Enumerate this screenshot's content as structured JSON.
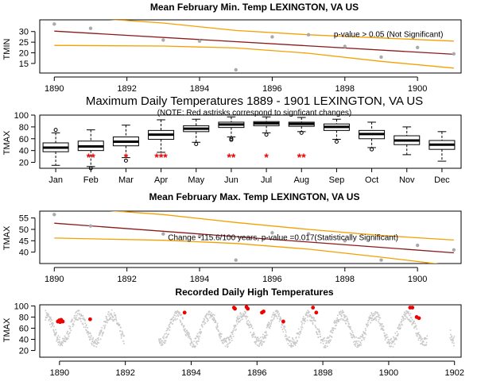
{
  "colors": {
    "trend": "#8b1a1a",
    "band": "#f5a000",
    "point": "#aaaaaa",
    "daily": "#c8c8c8",
    "highlight": "#ee0000",
    "sig": "#ee0000"
  },
  "chart_data": [
    {
      "type": "scatter",
      "title": "Mean February Min. Temp LEXINGTON, VA US",
      "ylabel": "TMIN",
      "xlabel": "",
      "xlim": [
        1889.6,
        1901.2
      ],
      "ylim": [
        10.5,
        35.5
      ],
      "xticks": [
        1890,
        1892,
        1894,
        1896,
        1898,
        1900
      ],
      "yticks": [
        15,
        20,
        25,
        30
      ],
      "points": [
        {
          "x": 1890,
          "y": 33.5
        },
        {
          "x": 1891,
          "y": 31.5
        },
        {
          "x": 1893,
          "y": 26
        },
        {
          "x": 1894,
          "y": 25.5
        },
        {
          "x": 1895,
          "y": 12
        },
        {
          "x": 1896,
          "y": 27.5
        },
        {
          "x": 1897,
          "y": 28.5
        },
        {
          "x": 1898,
          "y": 23
        },
        {
          "x": 1899,
          "y": 18
        },
        {
          "x": 1900,
          "y": 22.5
        },
        {
          "x": 1901,
          "y": 19.5
        }
      ],
      "trend": [
        [
          1890,
          30.2
        ],
        [
          1901,
          19.3
        ]
      ],
      "upper_band": [
        [
          1890,
          37.5
        ],
        [
          1893,
          34
        ],
        [
          1895,
          30.5
        ],
        [
          1897,
          28.5
        ],
        [
          1899,
          27
        ],
        [
          1901,
          25.5
        ]
      ],
      "lower_band": [
        [
          1890,
          23.5
        ],
        [
          1893,
          23.2
        ],
        [
          1895,
          22.3
        ],
        [
          1897,
          19.8
        ],
        [
          1899,
          16
        ],
        [
          1901,
          12.8
        ]
      ],
      "annotation": "p-value > 0.05 (Not Significant)",
      "annotation_at": [
        1899.2,
        27.5
      ]
    },
    {
      "type": "box",
      "title": "Maximum Daily Temperatures 1889 - 1901 LEXINGTON, VA US",
      "subtitle": "(NOTE: Red astrisks correspond to signficant changes)",
      "ylabel": "TMAX",
      "ylim": [
        10,
        100
      ],
      "yticks": [
        20,
        40,
        60,
        80,
        100
      ],
      "categories": [
        "Jan",
        "Feb",
        "Mar",
        "Apr",
        "May",
        "Jun",
        "Jul",
        "Aug",
        "Sep",
        "Oct",
        "Nov",
        "Dec"
      ],
      "boxes": [
        {
          "low": 15,
          "q1": 38,
          "median": 45,
          "q3": 53,
          "high": 70,
          "outliers": [
            75
          ]
        },
        {
          "low": 13,
          "q1": 40,
          "median": 47,
          "q3": 56,
          "high": 75,
          "outliers": [
            10
          ]
        },
        {
          "low": 28,
          "q1": 48,
          "median": 55,
          "q3": 63,
          "high": 83,
          "outliers": [
            23
          ]
        },
        {
          "low": 37,
          "q1": 59,
          "median": 67,
          "q3": 74,
          "high": 92,
          "outliers": []
        },
        {
          "low": 54,
          "q1": 72,
          "median": 77,
          "q3": 82,
          "high": 93,
          "outliers": [
            51
          ]
        },
        {
          "low": 63,
          "q1": 79,
          "median": 84,
          "q3": 88,
          "high": 97,
          "outliers": [
            58,
            60
          ]
        },
        {
          "low": 70,
          "q1": 82,
          "median": 86,
          "q3": 89,
          "high": 97,
          "outliers": [
            67
          ]
        },
        {
          "low": 72,
          "q1": 81,
          "median": 85,
          "q3": 88,
          "high": 96,
          "outliers": [
            70
          ]
        },
        {
          "low": 59,
          "q1": 74,
          "median": 80,
          "q3": 85,
          "high": 93,
          "outliers": [
            55
          ]
        },
        {
          "low": 45,
          "q1": 60,
          "median": 68,
          "q3": 74,
          "high": 88,
          "outliers": [
            42
          ]
        },
        {
          "low": 33,
          "q1": 50,
          "median": 57,
          "q3": 65,
          "high": 80,
          "outliers": []
        },
        {
          "low": 22,
          "q1": 42,
          "median": 50,
          "q3": 57,
          "high": 72,
          "outliers": []
        }
      ],
      "significance": [
        "",
        "**",
        "*",
        "***",
        "",
        "**",
        "*",
        "**",
        "",
        "",
        "",
        ""
      ]
    },
    {
      "type": "scatter",
      "title": "Mean February Max. Temp LEXINGTON, VA US",
      "ylabel": "TMAX",
      "xlabel": "",
      "xlim": [
        1889.6,
        1901.2
      ],
      "ylim": [
        35,
        58
      ],
      "xticks": [
        1890,
        1892,
        1894,
        1896,
        1898,
        1900
      ],
      "yticks": [
        40,
        45,
        50,
        55
      ],
      "points": [
        {
          "x": 1890,
          "y": 56.5
        },
        {
          "x": 1891,
          "y": 51.5
        },
        {
          "x": 1893,
          "y": 48
        },
        {
          "x": 1894,
          "y": 47
        },
        {
          "x": 1895,
          "y": 36.5
        },
        {
          "x": 1896,
          "y": 48.5
        },
        {
          "x": 1897,
          "y": 48
        },
        {
          "x": 1898,
          "y": 45
        },
        {
          "x": 1899,
          "y": 36.5
        },
        {
          "x": 1900,
          "y": 43
        },
        {
          "x": 1901,
          "y": 41
        }
      ],
      "trend": [
        [
          1890,
          52.7
        ],
        [
          1901,
          39.7
        ]
      ],
      "upper_band": [
        [
          1890,
          60
        ],
        [
          1893,
          56.5
        ],
        [
          1895,
          53
        ],
        [
          1897,
          50
        ],
        [
          1899,
          47.3
        ],
        [
          1901,
          45.3
        ]
      ],
      "lower_band": [
        [
          1890,
          46.2
        ],
        [
          1893,
          45.2
        ],
        [
          1895,
          43.8
        ],
        [
          1897,
          41.3
        ],
        [
          1899,
          37.8
        ],
        [
          1901,
          34
        ]
      ],
      "annotation": "Change -115.6/100 years, p-value =0.017(Statistically Significant)",
      "annotation_at": [
        1896.3,
        45.3
      ]
    },
    {
      "type": "scatter",
      "title": "Recorded Daily High Temperatures",
      "ylabel": "TMAX",
      "xlabel": "",
      "xlim": [
        1889.4,
        1902.2
      ],
      "ylim": [
        8,
        102
      ],
      "xticks": [
        1890,
        1892,
        1894,
        1896,
        1898,
        1900,
        1902
      ],
      "yticks": [
        20,
        40,
        60,
        80,
        100
      ],
      "segments": [
        [
          1889.55,
          1891.95
        ],
        [
          1893.0,
          1901.15
        ],
        [
          1901.85,
          1901.98
        ]
      ],
      "cycle": {
        "mean": 60,
        "amplitude": 25,
        "peak_phase": 0.55,
        "spread": 9
      },
      "highlights": [
        {
          "x": 1889.95,
          "y": 72
        },
        {
          "x": 1889.99,
          "y": 74
        },
        {
          "x": 1890.02,
          "y": 71
        },
        {
          "x": 1890.05,
          "y": 75
        },
        {
          "x": 1890.07,
          "y": 73
        },
        {
          "x": 1890.1,
          "y": 72
        },
        {
          "x": 1890.93,
          "y": 76
        },
        {
          "x": 1893.8,
          "y": 88
        },
        {
          "x": 1895.3,
          "y": 97
        },
        {
          "x": 1895.33,
          "y": 95
        },
        {
          "x": 1895.68,
          "y": 98
        },
        {
          "x": 1895.72,
          "y": 95
        },
        {
          "x": 1896.15,
          "y": 88
        },
        {
          "x": 1896.2,
          "y": 90
        },
        {
          "x": 1896.8,
          "y": 72
        },
        {
          "x": 1897.7,
          "y": 97
        },
        {
          "x": 1897.8,
          "y": 88
        },
        {
          "x": 1900.65,
          "y": 97
        },
        {
          "x": 1900.72,
          "y": 97
        },
        {
          "x": 1900.85,
          "y": 80
        },
        {
          "x": 1900.92,
          "y": 78
        }
      ]
    }
  ]
}
